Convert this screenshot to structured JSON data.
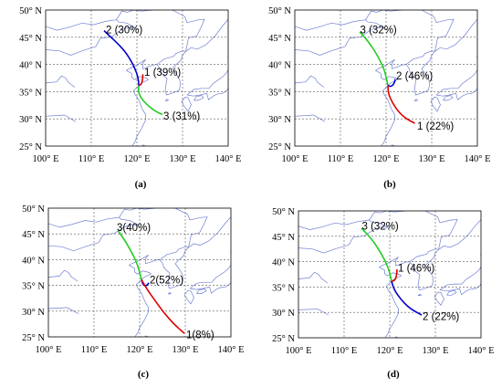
{
  "axes": {
    "lon_ticks": [
      100,
      110,
      120,
      130,
      140
    ],
    "lat_ticks": [
      25,
      30,
      35,
      40,
      45,
      50
    ],
    "lon_suffix": "° E",
    "lat_suffix": "° N"
  },
  "source_point": {
    "lon": 120.4,
    "lat": 36.1
  },
  "panels": [
    {
      "caption": "(a)",
      "clusters": [
        {
          "label": "2 (30%)",
          "color": "#0000cc",
          "path": [
            [
              120.4,
              36.1
            ],
            [
              120.3,
              37.5
            ],
            [
              119.6,
              39.2
            ],
            [
              118.5,
              41.0
            ],
            [
              117.2,
              42.6
            ],
            [
              115.6,
              44.0
            ],
            [
              113.8,
              45.4
            ],
            [
              112.8,
              46.2
            ]
          ],
          "label_pos": [
            113.2,
            46.4
          ]
        },
        {
          "label": "1 (39%)",
          "color": "#dd0000",
          "path": [
            [
              120.4,
              36.1
            ],
            [
              120.9,
              36.3
            ],
            [
              121.2,
              37.0
            ],
            [
              121.3,
              38.2
            ]
          ],
          "label_pos": [
            121.6,
            38.6
          ]
        },
        {
          "label": "3 (31%)",
          "color": "#22cc22",
          "path": [
            [
              120.4,
              36.1
            ],
            [
              120.3,
              35.0
            ],
            [
              120.9,
              33.8
            ],
            [
              122.2,
              32.6
            ],
            [
              124.0,
              31.4
            ],
            [
              125.6,
              30.8
            ]
          ],
          "label_pos": [
            125.8,
            30.5
          ]
        }
      ]
    },
    {
      "caption": "(b)",
      "clusters": [
        {
          "label": "3 (32%)",
          "color": "#22cc22",
          "path": [
            [
              120.4,
              36.1
            ],
            [
              120.0,
              37.8
            ],
            [
              119.4,
              39.5
            ],
            [
              118.2,
              41.5
            ],
            [
              116.8,
              43.4
            ],
            [
              115.3,
              45.0
            ],
            [
              114.2,
              46.0
            ]
          ],
          "label_pos": [
            114.3,
            46.4
          ]
        },
        {
          "label": "2 (46%)",
          "color": "#0000cc",
          "path": [
            [
              120.4,
              36.1
            ],
            [
              121.1,
              35.9
            ],
            [
              121.8,
              36.5
            ],
            [
              122.0,
              37.3
            ]
          ],
          "label_pos": [
            122.2,
            37.9
          ]
        },
        {
          "label": "1 (22%)",
          "color": "#dd0000",
          "path": [
            [
              120.4,
              36.1
            ],
            [
              120.5,
              34.6
            ],
            [
              121.4,
              32.9
            ],
            [
              122.9,
              31.1
            ],
            [
              124.6,
              29.9
            ],
            [
              126.3,
              29.2
            ]
          ],
          "label_pos": [
            126.8,
            28.7
          ]
        }
      ]
    },
    {
      "caption": "(c)",
      "clusters": [
        {
          "label": "3(40%)",
          "color": "#22cc22",
          "path": [
            [
              120.4,
              36.1
            ],
            [
              119.9,
              37.9
            ],
            [
              119.1,
              40.0
            ],
            [
              117.6,
              42.5
            ],
            [
              116.3,
              44.3
            ],
            [
              115.3,
              45.6
            ]
          ],
          "label_pos": [
            115.0,
            46.3
          ]
        },
        {
          "label": "2(52%)",
          "color": "#0000cc",
          "path": [
            [
              120.4,
              36.1
            ],
            [
              120.8,
              35.0
            ],
            [
              121.5,
              34.9
            ],
            [
              122.0,
              35.5
            ]
          ],
          "label_pos": [
            122.2,
            36.1
          ]
        },
        {
          "label": "1(8%)",
          "color": "#dd0000",
          "path": [
            [
              120.4,
              36.1
            ],
            [
              121.5,
              34.4
            ],
            [
              123.4,
              32.0
            ],
            [
              125.4,
              29.6
            ],
            [
              127.6,
              27.4
            ],
            [
              129.8,
              25.7
            ]
          ],
          "label_pos": [
            130.2,
            25.4
          ]
        }
      ]
    },
    {
      "caption": "(d)",
      "clusters": [
        {
          "label": "3 (32%)",
          "color": "#22cc22",
          "path": [
            [
              120.4,
              36.1
            ],
            [
              120.0,
              37.8
            ],
            [
              119.3,
              39.6
            ],
            [
              118.0,
              41.8
            ],
            [
              116.5,
              43.9
            ],
            [
              115.0,
              45.5
            ],
            [
              113.8,
              46.6
            ]
          ],
          "label_pos": [
            113.9,
            47.0
          ]
        },
        {
          "label": "1 (46%)",
          "color": "#dd0000",
          "path": [
            [
              120.4,
              36.1
            ],
            [
              121.1,
              36.3
            ],
            [
              121.5,
              37.2
            ],
            [
              121.6,
              38.5
            ]
          ],
          "label_pos": [
            121.8,
            38.8
          ]
        },
        {
          "label": "2 (22%)",
          "color": "#0000cc",
          "path": [
            [
              120.4,
              36.1
            ],
            [
              121.0,
              34.4
            ],
            [
              122.4,
              32.6
            ],
            [
              124.0,
              31.1
            ],
            [
              125.7,
              30.1
            ],
            [
              127.0,
              29.5
            ]
          ],
          "label_pos": [
            127.2,
            29.2
          ]
        }
      ]
    }
  ]
}
